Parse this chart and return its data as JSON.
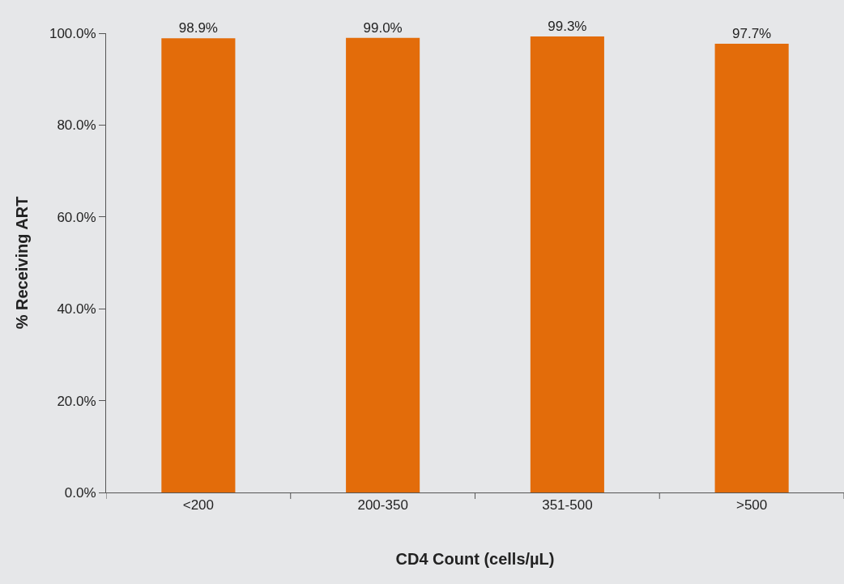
{
  "chart_data": {
    "type": "bar",
    "xlabel": "CD4 Count (cells/µL)",
    "ylabel": "% Receiving ART",
    "categories": [
      "<200",
      "200-350",
      "351-500",
      ">500"
    ],
    "values": [
      98.9,
      99.0,
      99.3,
      97.7
    ],
    "value_labels": [
      "98.9%",
      "99.0%",
      "99.3%",
      "97.7%"
    ],
    "color": "#e36c0a",
    "ylim": [
      0,
      100
    ],
    "yticks": [
      {
        "value": 0,
        "label": "0.0%"
      },
      {
        "value": 20,
        "label": "20.0%"
      },
      {
        "value": 40,
        "label": "40.0%"
      },
      {
        "value": 60,
        "label": "60.0%"
      },
      {
        "value": 80,
        "label": "80.0%"
      },
      {
        "value": 100,
        "label": "100.0%"
      }
    ],
    "grid": false,
    "legend": false
  }
}
